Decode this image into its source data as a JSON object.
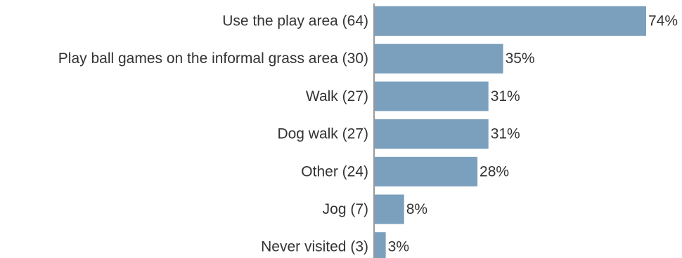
{
  "chart_data": {
    "type": "bar",
    "orientation": "horizontal",
    "title": "",
    "xlabel": "",
    "ylabel": "",
    "categories": [
      "Use the play area (64)",
      "Play ball games on the informal grass area (30)",
      "Walk (27)",
      "Dog walk (27)",
      "Other (24)",
      "Jog (7)",
      "Never visited (3)"
    ],
    "values": [
      74,
      35,
      31,
      31,
      28,
      8,
      3
    ],
    "value_labels": [
      "74%",
      "35%",
      "31%",
      "31%",
      "28%",
      "8%",
      "3%"
    ],
    "unit": "%",
    "xlim": [
      0,
      74
    ],
    "bar_color": "#7BA0BE",
    "grid": false,
    "legend": "none"
  }
}
